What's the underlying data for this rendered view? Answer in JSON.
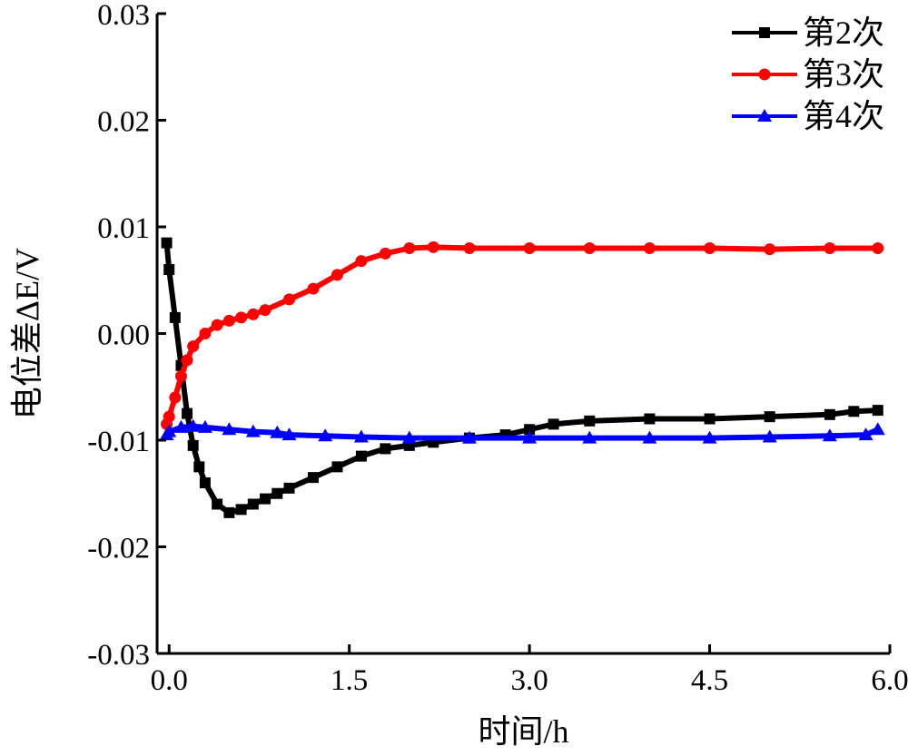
{
  "chart_data": {
    "type": "line",
    "xlabel": "时间/h",
    "ylabel": "电位差ΔE/V",
    "xlim": [
      -0.1,
      6.0
    ],
    "ylim": [
      -0.03,
      0.03
    ],
    "x_ticks": [
      0.0,
      1.5,
      3.0,
      4.5,
      6.0
    ],
    "x_tick_labels": [
      "0.0",
      "1.5",
      "3.0",
      "4.5",
      "6.0"
    ],
    "y_ticks": [
      0.03,
      0.02,
      0.01,
      0.0,
      -0.01,
      -0.02,
      -0.03
    ],
    "y_tick_labels": [
      "0.03",
      "0.02",
      "0.01",
      "0.00",
      "-0.01",
      "-0.02",
      "-0.03"
    ],
    "legend_position": "top-right",
    "grid": false,
    "series": [
      {
        "name": "第2次",
        "color": "#000000",
        "marker": "square",
        "x": [
          -0.02,
          0.0,
          0.05,
          0.1,
          0.15,
          0.2,
          0.25,
          0.3,
          0.4,
          0.5,
          0.6,
          0.7,
          0.8,
          0.9,
          1.0,
          1.2,
          1.4,
          1.6,
          1.8,
          2.0,
          2.2,
          2.5,
          2.8,
          3.0,
          3.2,
          3.5,
          4.0,
          4.5,
          5.0,
          5.5,
          5.7,
          5.9
        ],
        "y": [
          0.0085,
          0.006,
          0.0015,
          -0.003,
          -0.0075,
          -0.0105,
          -0.0125,
          -0.014,
          -0.016,
          -0.0168,
          -0.0165,
          -0.016,
          -0.0155,
          -0.015,
          -0.0145,
          -0.0135,
          -0.0125,
          -0.0115,
          -0.0108,
          -0.0105,
          -0.0102,
          -0.0098,
          -0.0095,
          -0.009,
          -0.0085,
          -0.0082,
          -0.008,
          -0.008,
          -0.0078,
          -0.0076,
          -0.0073,
          -0.0072
        ]
      },
      {
        "name": "第3次",
        "color": "#ff0000",
        "marker": "circle",
        "x": [
          -0.02,
          0.0,
          0.05,
          0.1,
          0.15,
          0.2,
          0.3,
          0.4,
          0.5,
          0.6,
          0.7,
          0.8,
          1.0,
          1.2,
          1.4,
          1.6,
          1.8,
          2.0,
          2.2,
          2.5,
          3.0,
          3.5,
          4.0,
          4.5,
          5.0,
          5.5,
          5.9
        ],
        "y": [
          -0.0085,
          -0.0078,
          -0.006,
          -0.004,
          -0.0025,
          -0.0012,
          0.0,
          0.0008,
          0.0012,
          0.0015,
          0.0018,
          0.0022,
          0.0032,
          0.0042,
          0.0055,
          0.0068,
          0.0075,
          0.008,
          0.0081,
          0.008,
          0.008,
          0.008,
          0.008,
          0.008,
          0.0079,
          0.008,
          0.008
        ]
      },
      {
        "name": "第4次",
        "color": "#0000ff",
        "marker": "triangle",
        "x": [
          -0.02,
          0.0,
          0.1,
          0.2,
          0.3,
          0.5,
          0.7,
          0.9,
          1.0,
          1.3,
          1.6,
          2.0,
          2.5,
          3.0,
          3.5,
          4.0,
          4.5,
          5.0,
          5.5,
          5.8,
          5.9
        ],
        "y": [
          -0.0095,
          -0.0092,
          -0.0088,
          -0.0087,
          -0.0088,
          -0.009,
          -0.0092,
          -0.0093,
          -0.0095,
          -0.0096,
          -0.0097,
          -0.0098,
          -0.0098,
          -0.0098,
          -0.0098,
          -0.0098,
          -0.0098,
          -0.0097,
          -0.0096,
          -0.0095,
          -0.009
        ]
      }
    ]
  }
}
